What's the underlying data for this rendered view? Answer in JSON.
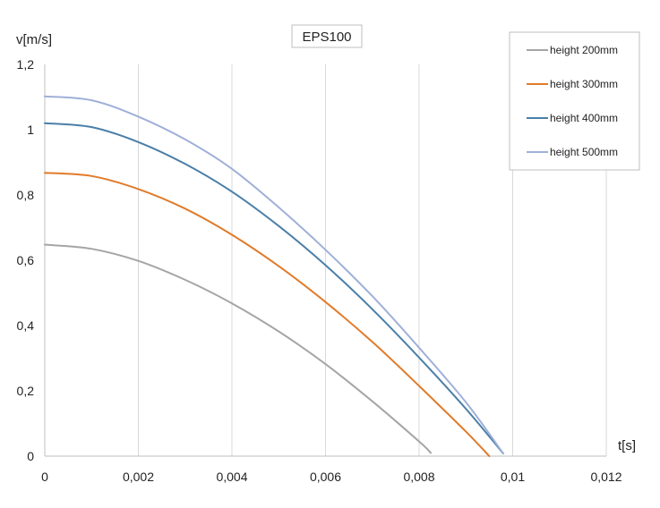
{
  "chart_data": {
    "type": "line",
    "title": "EPS100",
    "xlabel": "t[s]",
    "ylabel": "v[m/s]",
    "xlim": [
      0,
      0.012
    ],
    "ylim": [
      0,
      1.2
    ],
    "x_ticks": [
      "0",
      "0,002",
      "0,004",
      "0,006",
      "0,008",
      "0,01",
      "0,012"
    ],
    "y_ticks": [
      "0",
      "0,2",
      "0,4",
      "0,6",
      "0,8",
      "1",
      "1,2"
    ],
    "grid": "vertical",
    "legend_position": "top-right",
    "series": [
      {
        "name": "height 200mm",
        "color": "#a5a5a5",
        "points": [
          [
            0,
            0.648
          ],
          [
            0.001,
            0.635
          ],
          [
            0.002,
            0.598
          ],
          [
            0.003,
            0.54
          ],
          [
            0.004,
            0.468
          ],
          [
            0.005,
            0.382
          ],
          [
            0.006,
            0.282
          ],
          [
            0.007,
            0.168
          ],
          [
            0.008,
            0.045
          ],
          [
            0.00825,
            0.01
          ]
        ]
      },
      {
        "name": "height 300mm",
        "color": "#e07b2a",
        "points": [
          [
            0,
            0.868
          ],
          [
            0.001,
            0.858
          ],
          [
            0.002,
            0.818
          ],
          [
            0.003,
            0.758
          ],
          [
            0.004,
            0.678
          ],
          [
            0.005,
            0.582
          ],
          [
            0.006,
            0.472
          ],
          [
            0.007,
            0.35
          ],
          [
            0.008,
            0.215
          ],
          [
            0.009,
            0.075
          ],
          [
            0.0095,
            0.0
          ]
        ]
      },
      {
        "name": "height 400mm",
        "color": "#4a7fa8",
        "points": [
          [
            0,
            1.02
          ],
          [
            0.001,
            1.008
          ],
          [
            0.002,
            0.962
          ],
          [
            0.003,
            0.895
          ],
          [
            0.004,
            0.81
          ],
          [
            0.005,
            0.705
          ],
          [
            0.006,
            0.585
          ],
          [
            0.007,
            0.45
          ],
          [
            0.008,
            0.302
          ],
          [
            0.009,
            0.145
          ],
          [
            0.0098,
            0.008
          ]
        ]
      },
      {
        "name": "height 500mm",
        "color": "#9fb0d8",
        "points": [
          [
            0,
            1.102
          ],
          [
            0.001,
            1.09
          ],
          [
            0.002,
            1.04
          ],
          [
            0.003,
            0.97
          ],
          [
            0.004,
            0.88
          ],
          [
            0.005,
            0.762
          ],
          [
            0.006,
            0.632
          ],
          [
            0.007,
            0.49
          ],
          [
            0.008,
            0.332
          ],
          [
            0.009,
            0.165
          ],
          [
            0.0098,
            0.008
          ]
        ]
      }
    ]
  }
}
